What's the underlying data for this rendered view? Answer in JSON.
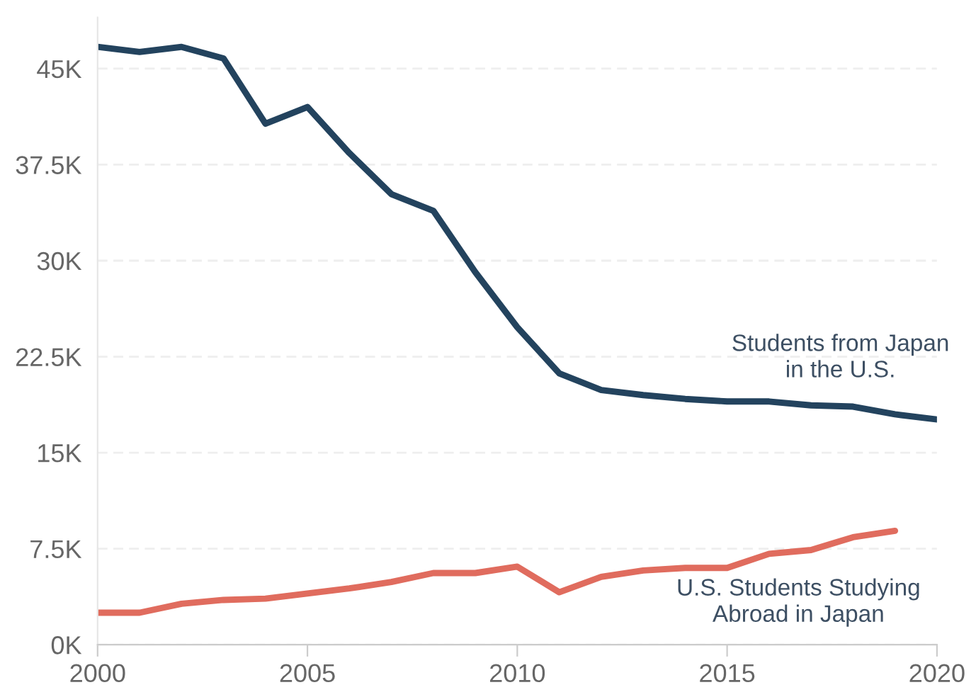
{
  "chart_data": {
    "type": "line",
    "x": [
      2000,
      2001,
      2002,
      2003,
      2004,
      2005,
      2006,
      2007,
      2008,
      2009,
      2010,
      2011,
      2012,
      2013,
      2014,
      2015,
      2016,
      2017,
      2018,
      2019,
      2020
    ],
    "series": [
      {
        "name": "Students from Japan in the U.S.",
        "color": "#23435e",
        "values": [
          46700,
          46300,
          46700,
          45800,
          40700,
          42000,
          38400,
          35200,
          33900,
          29100,
          24800,
          21200,
          19900,
          19500,
          19200,
          19000,
          19000,
          18700,
          18600,
          18000,
          17600
        ]
      },
      {
        "name": "U.S. Students Studying Abroad in Japan",
        "color": "#e06c5e",
        "values": [
          2500,
          2500,
          3200,
          3500,
          3600,
          4000,
          4400,
          4900,
          5600,
          5600,
          6100,
          4100,
          5300,
          5800,
          6000,
          6000,
          7100,
          7400,
          8400,
          8900,
          null
        ]
      }
    ],
    "xlim": [
      2000,
      2020
    ],
    "xticks": [
      2000,
      2005,
      2010,
      2015,
      2020
    ],
    "yticks": [
      {
        "value": 0,
        "label": "0K"
      },
      {
        "value": 7500,
        "label": "7.5K"
      },
      {
        "value": 15000,
        "label": "15K"
      },
      {
        "value": 22500,
        "label": "22.5K"
      },
      {
        "value": 30000,
        "label": "30K"
      },
      {
        "value": 37500,
        "label": "37.5K"
      },
      {
        "value": 45000,
        "label": "45K"
      }
    ],
    "ylim": [
      0,
      49000
    ],
    "grid": "y",
    "legend": false,
    "line_style": "solid",
    "marker": "none"
  }
}
